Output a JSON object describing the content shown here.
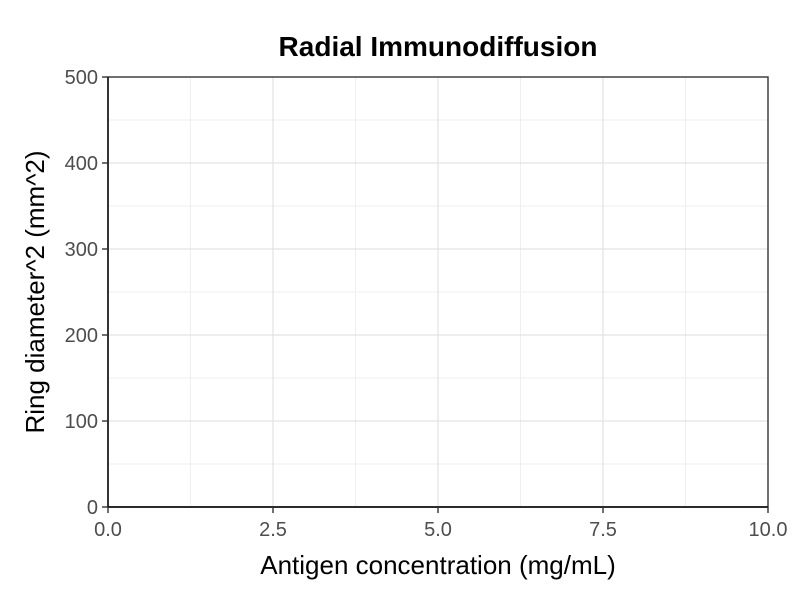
{
  "chart_data": {
    "type": "scatter",
    "title": "Radial Immunodiffusion",
    "xlabel": "Antigen concentration (mg/mL)",
    "ylabel": "Ring diameter^2 (mm^2)",
    "xlim": [
      0,
      10
    ],
    "ylim": [
      0,
      500
    ],
    "x_ticks": [
      "0.0",
      "2.5",
      "5.0",
      "7.5",
      "10.0"
    ],
    "y_ticks": [
      "0",
      "100",
      "200",
      "300",
      "400",
      "500"
    ],
    "grid": true,
    "series": []
  }
}
